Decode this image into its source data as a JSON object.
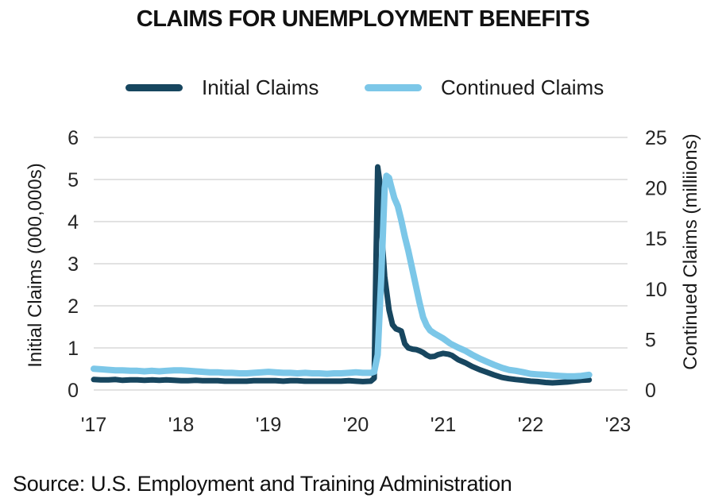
{
  "title": "CLAIMS FOR UNEMPLOYMENT BENEFITS",
  "source": "Source: U.S. Employment and Training Administration",
  "colors": {
    "initial_claims": "#17465f",
    "continued_claims": "#7cc7e8",
    "gridline": "#d9d9d9",
    "text": "#1a1a1a"
  },
  "legend": [
    {
      "label": "Initial Claims",
      "color": "#17465f"
    },
    {
      "label": "Continued Claims",
      "color": "#7cc7e8"
    }
  ],
  "chart_data": {
    "type": "line",
    "title": "CLAIMS FOR UNEMPLOYMENT BENEFITS",
    "grid": "horizontal",
    "legend_position": "top",
    "left_axis": {
      "label": "Initial Claims (000,000s)",
      "ylim": [
        0,
        6
      ],
      "ticks": [
        0,
        1,
        2,
        3,
        4,
        5,
        6
      ]
    },
    "right_axis": {
      "label": "Continued Claims (milliions)",
      "ylim": [
        0,
        25
      ],
      "ticks": [
        0,
        5,
        10,
        15,
        20,
        25
      ]
    },
    "x_axis": {
      "xlim": [
        2017,
        2023.11
      ],
      "tick_years": [
        2017,
        2018,
        2019,
        2020,
        2021,
        2022,
        2023
      ],
      "tick_labels": [
        "'17",
        "'18",
        "'19",
        "'20",
        "'21",
        "'22",
        "'23"
      ]
    },
    "series": [
      {
        "name": "Initial Claims",
        "axis": "left",
        "color": "#17465f",
        "width": 7,
        "points": [
          [
            2017.0,
            0.25
          ],
          [
            2017.08,
            0.24
          ],
          [
            2017.17,
            0.24
          ],
          [
            2017.25,
            0.25
          ],
          [
            2017.33,
            0.23
          ],
          [
            2017.42,
            0.24
          ],
          [
            2017.5,
            0.24
          ],
          [
            2017.58,
            0.23
          ],
          [
            2017.67,
            0.24
          ],
          [
            2017.75,
            0.23
          ],
          [
            2017.83,
            0.24
          ],
          [
            2017.92,
            0.23
          ],
          [
            2018.0,
            0.22
          ],
          [
            2018.08,
            0.22
          ],
          [
            2018.17,
            0.23
          ],
          [
            2018.25,
            0.22
          ],
          [
            2018.33,
            0.22
          ],
          [
            2018.42,
            0.22
          ],
          [
            2018.5,
            0.21
          ],
          [
            2018.58,
            0.21
          ],
          [
            2018.67,
            0.21
          ],
          [
            2018.75,
            0.21
          ],
          [
            2018.83,
            0.22
          ],
          [
            2018.92,
            0.22
          ],
          [
            2019.0,
            0.22
          ],
          [
            2019.08,
            0.22
          ],
          [
            2019.17,
            0.21
          ],
          [
            2019.25,
            0.22
          ],
          [
            2019.33,
            0.22
          ],
          [
            2019.42,
            0.21
          ],
          [
            2019.5,
            0.21
          ],
          [
            2019.58,
            0.21
          ],
          [
            2019.67,
            0.21
          ],
          [
            2019.75,
            0.21
          ],
          [
            2019.83,
            0.21
          ],
          [
            2019.92,
            0.22
          ],
          [
            2020.0,
            0.21
          ],
          [
            2020.08,
            0.2
          ],
          [
            2020.17,
            0.21
          ],
          [
            2020.21,
            0.28
          ],
          [
            2020.23,
            3.0
          ],
          [
            2020.25,
            5.3
          ],
          [
            2020.27,
            5.0
          ],
          [
            2020.29,
            3.9
          ],
          [
            2020.33,
            2.7
          ],
          [
            2020.38,
            1.9
          ],
          [
            2020.42,
            1.55
          ],
          [
            2020.46,
            1.45
          ],
          [
            2020.5,
            1.42
          ],
          [
            2020.52,
            1.4
          ],
          [
            2020.56,
            1.1
          ],
          [
            2020.6,
            1.0
          ],
          [
            2020.65,
            0.97
          ],
          [
            2020.69,
            0.96
          ],
          [
            2020.73,
            0.93
          ],
          [
            2020.77,
            0.89
          ],
          [
            2020.81,
            0.83
          ],
          [
            2020.85,
            0.79
          ],
          [
            2020.9,
            0.8
          ],
          [
            2020.94,
            0.84
          ],
          [
            2021.0,
            0.87
          ],
          [
            2021.06,
            0.85
          ],
          [
            2021.1,
            0.82
          ],
          [
            2021.17,
            0.72
          ],
          [
            2021.25,
            0.65
          ],
          [
            2021.33,
            0.56
          ],
          [
            2021.42,
            0.48
          ],
          [
            2021.5,
            0.42
          ],
          [
            2021.58,
            0.36
          ],
          [
            2021.67,
            0.3
          ],
          [
            2021.75,
            0.27
          ],
          [
            2021.83,
            0.25
          ],
          [
            2021.92,
            0.23
          ],
          [
            2022.0,
            0.21
          ],
          [
            2022.08,
            0.2
          ],
          [
            2022.17,
            0.18
          ],
          [
            2022.25,
            0.17
          ],
          [
            2022.33,
            0.18
          ],
          [
            2022.42,
            0.19
          ],
          [
            2022.5,
            0.21
          ],
          [
            2022.58,
            0.23
          ],
          [
            2022.67,
            0.24
          ]
        ]
      },
      {
        "name": "Continued Claims",
        "axis": "right",
        "color": "#7cc7e8",
        "width": 8,
        "points": [
          [
            2017.0,
            2.1
          ],
          [
            2017.08,
            2.05
          ],
          [
            2017.17,
            2.0
          ],
          [
            2017.25,
            1.95
          ],
          [
            2017.33,
            1.95
          ],
          [
            2017.42,
            1.9
          ],
          [
            2017.5,
            1.9
          ],
          [
            2017.58,
            1.85
          ],
          [
            2017.67,
            1.9
          ],
          [
            2017.75,
            1.85
          ],
          [
            2017.83,
            1.9
          ],
          [
            2017.92,
            1.95
          ],
          [
            2018.0,
            1.95
          ],
          [
            2018.08,
            1.9
          ],
          [
            2018.17,
            1.85
          ],
          [
            2018.25,
            1.8
          ],
          [
            2018.33,
            1.75
          ],
          [
            2018.42,
            1.75
          ],
          [
            2018.5,
            1.7
          ],
          [
            2018.58,
            1.7
          ],
          [
            2018.67,
            1.65
          ],
          [
            2018.75,
            1.65
          ],
          [
            2018.83,
            1.7
          ],
          [
            2018.92,
            1.75
          ],
          [
            2019.0,
            1.8
          ],
          [
            2019.08,
            1.75
          ],
          [
            2019.17,
            1.7
          ],
          [
            2019.25,
            1.7
          ],
          [
            2019.33,
            1.65
          ],
          [
            2019.42,
            1.7
          ],
          [
            2019.5,
            1.65
          ],
          [
            2019.58,
            1.65
          ],
          [
            2019.67,
            1.6
          ],
          [
            2019.75,
            1.65
          ],
          [
            2019.83,
            1.65
          ],
          [
            2019.92,
            1.7
          ],
          [
            2020.0,
            1.75
          ],
          [
            2020.08,
            1.7
          ],
          [
            2020.17,
            1.7
          ],
          [
            2020.21,
            1.8
          ],
          [
            2020.25,
            3.5
          ],
          [
            2020.29,
            11.0
          ],
          [
            2020.33,
            20.0
          ],
          [
            2020.35,
            21.2
          ],
          [
            2020.38,
            21.0
          ],
          [
            2020.4,
            20.3
          ],
          [
            2020.44,
            19.0
          ],
          [
            2020.48,
            18.2
          ],
          [
            2020.52,
            16.8
          ],
          [
            2020.56,
            15.2
          ],
          [
            2020.6,
            13.8
          ],
          [
            2020.65,
            11.8
          ],
          [
            2020.69,
            10.2
          ],
          [
            2020.73,
            8.6
          ],
          [
            2020.77,
            7.2
          ],
          [
            2020.81,
            6.4
          ],
          [
            2020.85,
            5.9
          ],
          [
            2020.9,
            5.6
          ],
          [
            2020.94,
            5.4
          ],
          [
            2021.0,
            5.1
          ],
          [
            2021.08,
            4.6
          ],
          [
            2021.17,
            4.2
          ],
          [
            2021.25,
            3.9
          ],
          [
            2021.33,
            3.5
          ],
          [
            2021.42,
            3.1
          ],
          [
            2021.5,
            2.8
          ],
          [
            2021.58,
            2.5
          ],
          [
            2021.67,
            2.2
          ],
          [
            2021.75,
            2.0
          ],
          [
            2021.83,
            1.9
          ],
          [
            2021.92,
            1.75
          ],
          [
            2022.0,
            1.6
          ],
          [
            2022.08,
            1.55
          ],
          [
            2022.17,
            1.5
          ],
          [
            2022.25,
            1.45
          ],
          [
            2022.33,
            1.4
          ],
          [
            2022.42,
            1.35
          ],
          [
            2022.5,
            1.35
          ],
          [
            2022.58,
            1.4
          ],
          [
            2022.67,
            1.5
          ]
        ]
      }
    ]
  }
}
